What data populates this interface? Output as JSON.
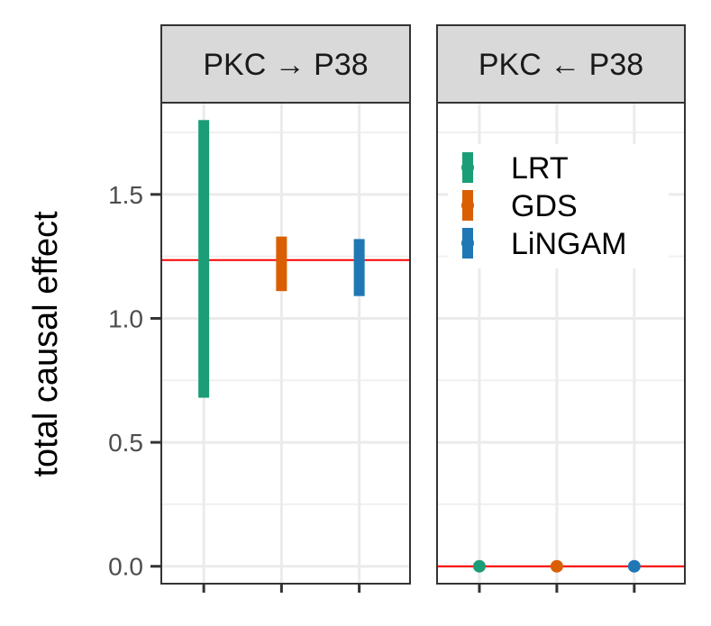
{
  "chart_data": {
    "type": "errorbar",
    "ylabel": "total causal effect",
    "xlabel": "",
    "ylim": [
      -0.07,
      1.87
    ],
    "yticks": [
      {
        "value": 0.0,
        "label": "0.0"
      },
      {
        "value": 0.5,
        "label": "0.5"
      },
      {
        "value": 1.0,
        "label": "1.0"
      },
      {
        "value": 1.5,
        "label": "1.5"
      }
    ],
    "grid": true,
    "legend_position": "top-left of right panel",
    "methods": [
      {
        "name": "LRT",
        "color": "#1b9e77"
      },
      {
        "name": "GDS",
        "color": "#d95f02"
      },
      {
        "name": "LiNGAM",
        "color": "#1f78b4"
      }
    ],
    "panels": [
      {
        "title": "PKC → P38",
        "reference_line": 1.235,
        "estimates": [
          {
            "method": "LRT",
            "lower": 0.68,
            "upper": 1.8
          },
          {
            "method": "GDS",
            "lower": 1.11,
            "upper": 1.33
          },
          {
            "method": "LiNGAM",
            "lower": 1.09,
            "upper": 1.32
          }
        ]
      },
      {
        "title": "PKC ← P38",
        "reference_line": 0.0,
        "estimates": [
          {
            "method": "LRT",
            "lower": 0.0,
            "upper": 0.0
          },
          {
            "method": "GDS",
            "lower": 0.0,
            "upper": 0.0
          },
          {
            "method": "LiNGAM",
            "lower": 0.0,
            "upper": 0.0
          }
        ]
      }
    ]
  }
}
